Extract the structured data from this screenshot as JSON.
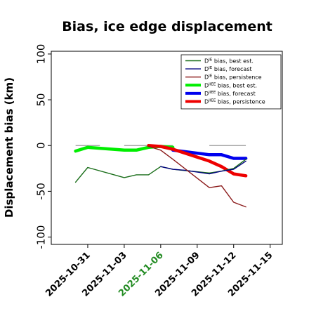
{
  "chart_data": {
    "type": "line",
    "title": "Bias, ice edge displacement",
    "xlabel": "",
    "ylabel": "Displacement bias (km)",
    "xlim": [
      "2025-10-28",
      "2025-11-16"
    ],
    "ylim": [
      -108,
      103
    ],
    "yticks": [
      100,
      50,
      0,
      -50,
      -100
    ],
    "xticks": [
      "2025-10-31",
      "2025-11-03",
      "2025-11-06",
      "2025-11-09",
      "2025-11-12",
      "2025-11-15"
    ],
    "highlighted_xtick": "2025-11-06",
    "highlight_color": "#228b22",
    "zero_reference_segments": [
      [
        "2025-10-30",
        "2025-11-01"
      ],
      [
        "2025-11-03",
        "2025-11-07"
      ],
      [
        "2025-11-10",
        "2025-11-13"
      ]
    ],
    "legend_position": "top-right",
    "series": [
      {
        "name": "D bias, best est.",
        "sup": "IE",
        "color": "#1a6e1a",
        "width": "thin",
        "points": [
          [
            "2025-10-30",
            -40
          ],
          [
            "2025-10-31",
            -24
          ],
          [
            "2025-11-03",
            -35
          ],
          [
            "2025-11-04",
            -32
          ],
          [
            "2025-11-05",
            -32
          ],
          [
            "2025-11-06",
            -23
          ],
          [
            "2025-11-07",
            -26
          ],
          [
            "2025-11-10",
            -30
          ],
          [
            "2025-11-11",
            -28
          ],
          [
            "2025-11-12",
            -25
          ],
          [
            "2025-11-13",
            -15
          ]
        ]
      },
      {
        "name": "D bias, forecast",
        "sup": "IE",
        "color": "#000080",
        "width": "thin",
        "points": [
          [
            "2025-11-06",
            -23
          ],
          [
            "2025-11-07",
            -26
          ],
          [
            "2025-11-08",
            -27
          ],
          [
            "2025-11-10",
            -31
          ],
          [
            "2025-11-11",
            -28
          ],
          [
            "2025-11-12",
            -26
          ],
          [
            "2025-11-13",
            -17
          ]
        ]
      },
      {
        "name": "D bias, persistence",
        "sup": "IE",
        "color": "#8b1a1a",
        "width": "thin",
        "points": [
          [
            "2025-11-05",
            -1
          ],
          [
            "2025-11-06",
            -5
          ],
          [
            "2025-11-07",
            -15
          ],
          [
            "2025-11-10",
            -46
          ],
          [
            "2025-11-11",
            -44
          ],
          [
            "2025-11-12",
            -62
          ],
          [
            "2025-11-13",
            -67
          ]
        ]
      },
      {
        "name": "D bias, best est.",
        "sup": "IIEE",
        "color": "#00ee00",
        "width": "thick",
        "points": [
          [
            "2025-10-30",
            -6
          ],
          [
            "2025-10-31",
            -2
          ],
          [
            "2025-11-03",
            -5
          ],
          [
            "2025-11-04",
            -5
          ],
          [
            "2025-11-05",
            -2
          ],
          [
            "2025-11-06",
            -1
          ],
          [
            "2025-11-07",
            -2
          ]
        ]
      },
      {
        "name": "D bias, forecast",
        "sup": "IIEE",
        "color": "#0000ee",
        "width": "thick",
        "points": [
          [
            "2025-11-07",
            -5
          ],
          [
            "2025-11-10",
            -10
          ],
          [
            "2025-11-11",
            -10
          ],
          [
            "2025-11-12",
            -14
          ],
          [
            "2025-11-13",
            -14
          ]
        ]
      },
      {
        "name": "D bias, persistence",
        "sup": "IIEE",
        "color": "#ee0000",
        "width": "thick",
        "points": [
          [
            "2025-11-05",
            0
          ],
          [
            "2025-11-06",
            -1
          ],
          [
            "2025-11-07",
            -4
          ],
          [
            "2025-11-10",
            -17
          ],
          [
            "2025-11-11",
            -23
          ],
          [
            "2025-11-12",
            -31
          ],
          [
            "2025-11-13",
            -33
          ]
        ]
      }
    ]
  }
}
